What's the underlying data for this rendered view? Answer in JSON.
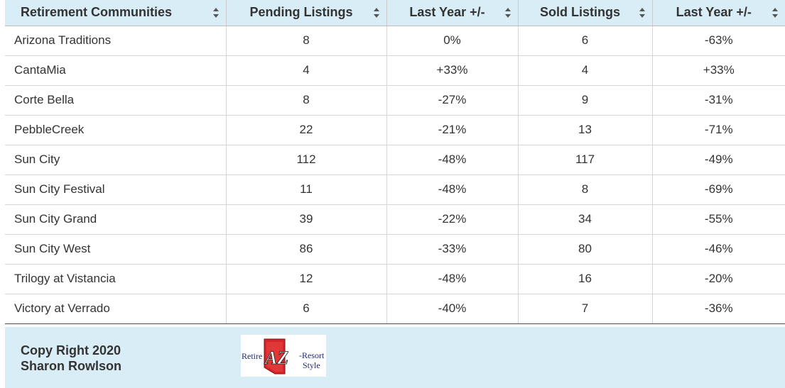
{
  "table": {
    "headers": [
      "Retirement Communities",
      "Pending Listings",
      "Last Year +/-",
      "Sold Listings",
      "Last Year +/-"
    ],
    "rows": [
      [
        "Arizona Traditions",
        "8",
        "0%",
        "6",
        "-63%"
      ],
      [
        "CantaMia",
        "4",
        "+33%",
        "4",
        "+33%"
      ],
      [
        "Corte Bella",
        "8",
        "-27%",
        "9",
        "-31%"
      ],
      [
        "PebbleCreek",
        "22",
        "-21%",
        "13",
        "-71%"
      ],
      [
        "Sun City",
        "112",
        "-48%",
        "117",
        "-49%"
      ],
      [
        "Sun City Festival",
        "11",
        "-48%",
        "8",
        "-69%"
      ],
      [
        "Sun City Grand",
        "39",
        "-22%",
        "34",
        "-55%"
      ],
      [
        "Sun City West",
        "86",
        "-33%",
        "80",
        "-46%"
      ],
      [
        "Trilogy at Vistancia",
        "12",
        "-48%",
        "16",
        "-20%"
      ],
      [
        "Victory at Verrado",
        "6",
        "-40%",
        "7",
        "-36%"
      ]
    ]
  },
  "footer": {
    "copyright_line1": "Copy Right 2020",
    "copyright_line2": "Sharon Rowlson",
    "logo": {
      "text_left": "Retire",
      "text_center": "AZ",
      "text_right_top": "-Resort",
      "text_right_bottom": "Style"
    }
  },
  "colors": {
    "header_bg": "#d9edf7",
    "footer_bg": "#d9edf7",
    "text": "#333333",
    "grid": "#d6d6d6",
    "logo_red": "#d8232a"
  },
  "icons": {
    "sort": "sort-icon"
  }
}
